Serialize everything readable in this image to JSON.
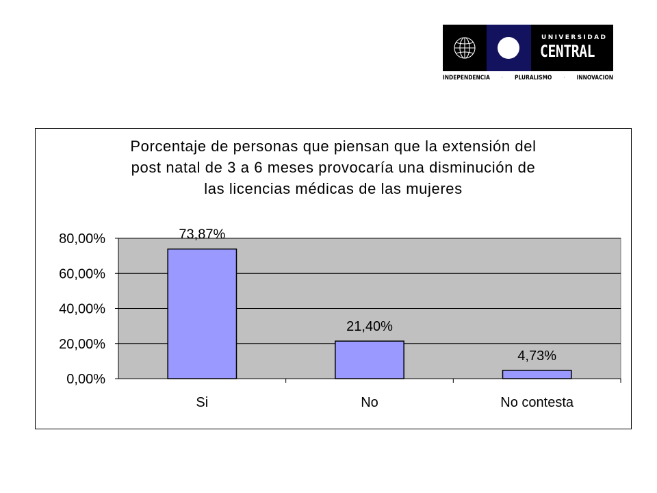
{
  "logo": {
    "univ": "UNIVERSIDAD",
    "name": "CENTRAL",
    "tagline": [
      "INDEPENDENCIA",
      "PLURALISMO",
      "INNOVACION"
    ],
    "colors": {
      "background": "#000000",
      "panel": "#12125e",
      "mark": "#ffffff"
    }
  },
  "chart_data": {
    "type": "bar",
    "title_lines": [
      "Porcentaje de personas que piensan que la extensión del",
      "post natal de 3 a 6 meses provocaría una disminución de",
      "las licencias médicas de las mujeres"
    ],
    "categories": [
      "Si",
      "No",
      "No contesta"
    ],
    "values": [
      73.87,
      21.4,
      4.73
    ],
    "data_labels": [
      "73,87%",
      "21,40%",
      "4,73%"
    ],
    "ylim": [
      0,
      80
    ],
    "yticks": [
      0,
      20,
      40,
      60,
      80
    ],
    "ytick_labels": [
      "0,00%",
      "20,00%",
      "40,00%",
      "60,00%",
      "80,00%"
    ],
    "grid": true,
    "legend": "none",
    "colors": {
      "bar": "#9999ff",
      "plot_background": "#c0c0c0",
      "gridline": "#000000"
    }
  }
}
